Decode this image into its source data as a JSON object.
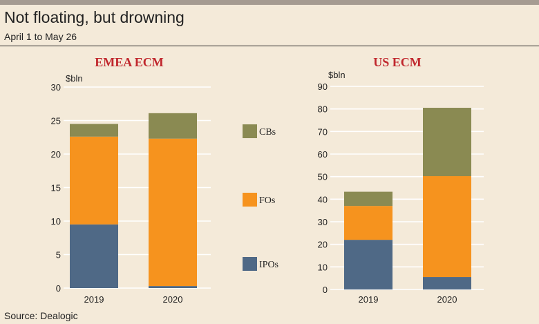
{
  "header": {
    "title": "Not floating, but drowning",
    "subtitle": "April 1 to May 26"
  },
  "footer": {
    "source": "Source: Dealogic"
  },
  "colors": {
    "IPOs": "#4f6986",
    "FOs": "#f6931e",
    "CBs": "#8a8a52",
    "title_red": "#c0272d",
    "background": "#f4ead9",
    "grid": "#ffffff"
  },
  "legend": [
    "CBs",
    "FOs",
    "IPOs"
  ],
  "chart_data": [
    {
      "type": "bar",
      "stacked": true,
      "title": "EMEA ECM",
      "ylabel": "$bln",
      "ylim": [
        0,
        30
      ],
      "yticks": [
        0,
        5,
        10,
        15,
        20,
        25,
        30
      ],
      "categories": [
        "2019",
        "2020"
      ],
      "series": [
        {
          "name": "IPOs",
          "values": [
            9.5,
            0.3
          ]
        },
        {
          "name": "FOs",
          "values": [
            13.1,
            22.0
          ]
        },
        {
          "name": "CBs",
          "values": [
            1.9,
            3.8
          ]
        }
      ]
    },
    {
      "type": "bar",
      "stacked": true,
      "title": "US ECM",
      "ylabel": "$bln",
      "ylim": [
        0,
        90
      ],
      "yticks": [
        0,
        10,
        20,
        30,
        40,
        50,
        60,
        70,
        80,
        90
      ],
      "categories": [
        "2019",
        "2020"
      ],
      "series": [
        {
          "name": "IPOs",
          "values": [
            22.0,
            5.5
          ]
        },
        {
          "name": "FOs",
          "values": [
            15.0,
            44.7
          ]
        },
        {
          "name": "CBs",
          "values": [
            6.3,
            30.3
          ]
        }
      ]
    }
  ]
}
